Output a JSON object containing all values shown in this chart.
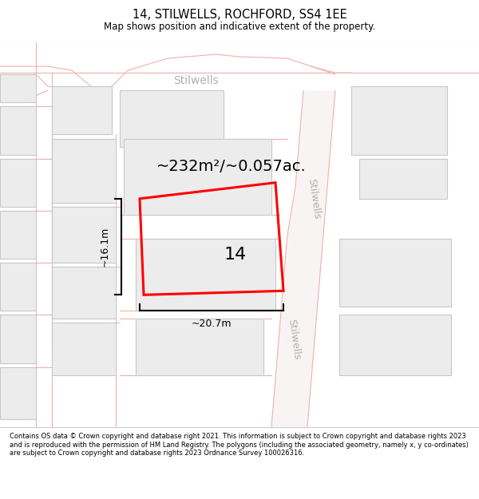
{
  "title": "14, STILWELLS, ROCHFORD, SS4 1EE",
  "subtitle": "Map shows position and indicative extent of the property.",
  "footer": "Contains OS data © Crown copyright and database right 2021. This information is subject to Crown copyright and database rights 2023 and is reproduced with the permission of HM Land Registry. The polygons (including the associated geometry, namely x, y co-ordinates) are subject to Crown copyright and database rights 2023 Ordnance Survey 100026316.",
  "area_label": "~232m²/~0.057ac.",
  "width_label": "~20.7m",
  "height_label": "~16.1m",
  "number_label": "14",
  "map_bg": "#ffffff",
  "building_fill": "#ececec",
  "building_stroke": "#c8c8c8",
  "highlight_stroke": "#ff0000",
  "highlight_lw": 2.2,
  "parcel_color": "#f0b0b0",
  "parcel_lw": 0.8,
  "street_label_color": "#b0b0b0",
  "dim_line_color": "#000000",
  "title_fontsize": 10.5,
  "subtitle_fontsize": 8.5,
  "area_fontsize": 14,
  "number_fontsize": 16,
  "dim_fontsize": 9,
  "street_fontsize": 9
}
